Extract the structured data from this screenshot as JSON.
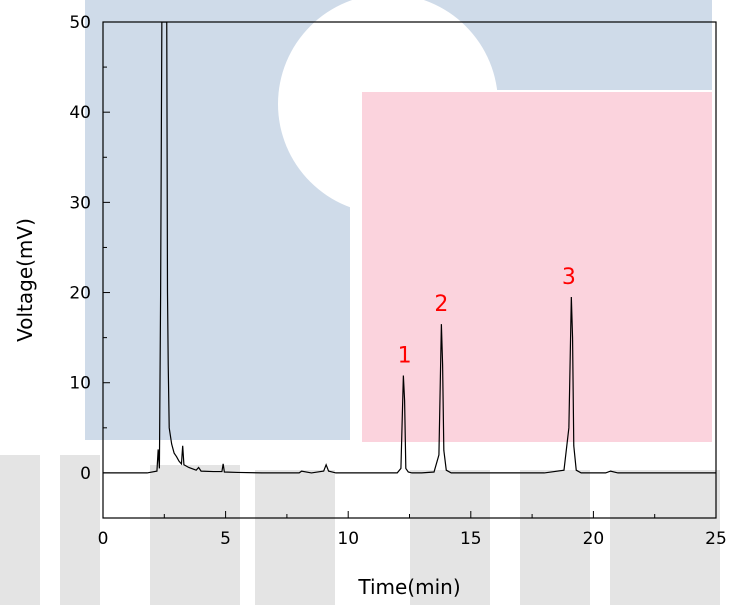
{
  "chart_data": {
    "type": "line",
    "title": "",
    "xlabel": "Time(min)",
    "ylabel": "Voltage(mV)",
    "xlim": [
      0,
      25
    ],
    "ylim": [
      -5,
      50
    ],
    "x_ticks": [
      0,
      5,
      10,
      15,
      20,
      25
    ],
    "y_ticks": [
      0,
      10,
      20,
      30,
      40,
      50
    ],
    "grid": false,
    "legend": "none",
    "series": [
      {
        "color": "#000000",
        "x": [
          0,
          1.8,
          2.2,
          2.25,
          2.3,
          2.35,
          2.4,
          2.45,
          2.5,
          2.55,
          2.6,
          2.63,
          2.66,
          2.7,
          2.8,
          2.9,
          3.0,
          3.1,
          3.2,
          3.25,
          3.3,
          3.5,
          3.8,
          3.9,
          4.0,
          4.5,
          4.85,
          4.9,
          4.95,
          5.5,
          6.5,
          7.5,
          8.0,
          8.1,
          8.5,
          9.0,
          9.1,
          9.2,
          9.5,
          10.5,
          11.5,
          12.0,
          12.15,
          12.25,
          12.3,
          12.35,
          12.45,
          12.6,
          13.0,
          13.5,
          13.7,
          13.8,
          13.85,
          13.9,
          14.0,
          14.2,
          15.0,
          16.0,
          17.0,
          18.0,
          18.8,
          19.0,
          19.1,
          19.15,
          19.2,
          19.3,
          19.5,
          20.0,
          20.5,
          20.7,
          21.0,
          22.0,
          23.0,
          24.0,
          25.0
        ],
        "y": [
          0,
          0,
          0.2,
          2.6,
          0.5,
          20,
          50,
          50,
          50,
          50,
          50,
          20,
          12,
          5,
          3.2,
          2.2,
          1.8,
          1.3,
          1,
          3,
          0.9,
          0.6,
          0.3,
          0.6,
          0.2,
          0.15,
          0.15,
          1,
          0.1,
          0.05,
          0,
          0,
          0,
          0.2,
          0,
          0.2,
          0.9,
          0.2,
          0,
          0,
          0,
          0,
          0.5,
          10.8,
          8,
          0.5,
          0.1,
          0,
          0,
          0.1,
          2,
          16.5,
          12,
          2.5,
          0.3,
          0,
          0,
          0,
          0,
          0,
          0.3,
          5,
          19.5,
          15,
          3,
          0.3,
          0,
          0,
          0,
          0.2,
          0,
          0,
          0,
          0,
          0
        ]
      }
    ],
    "annotations": [
      {
        "text": "1",
        "x": 12.3,
        "y": 10.8,
        "color": "#ff0000"
      },
      {
        "text": "2",
        "x": 13.8,
        "y": 16.5,
        "color": "#ff0000"
      },
      {
        "text": "3",
        "x": 19.0,
        "y": 19.5,
        "color": "#ff0000"
      }
    ]
  }
}
